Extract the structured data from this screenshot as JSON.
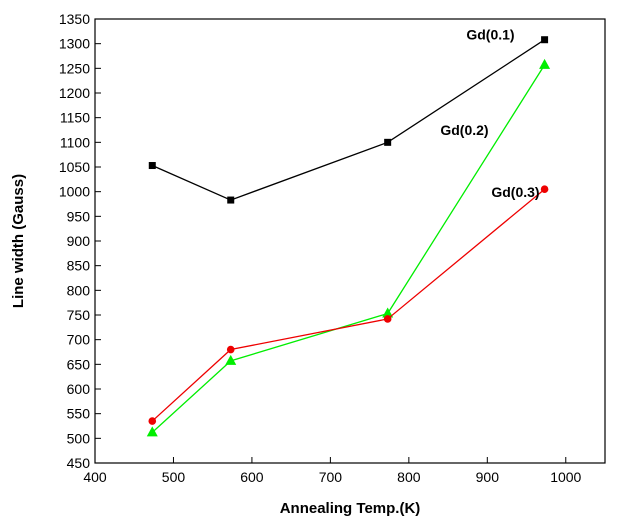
{
  "chart_data": {
    "type": "line",
    "xlabel": "Annealing Temp.(K)",
    "ylabel": "Line width (Gauss)",
    "xlim": [
      400,
      1050
    ],
    "ylim": [
      450,
      1350
    ],
    "x_ticks": [
      400,
      500,
      600,
      700,
      800,
      900,
      1000
    ],
    "y_ticks": [
      450,
      500,
      550,
      600,
      650,
      700,
      750,
      800,
      850,
      900,
      950,
      1000,
      1050,
      1100,
      1150,
      1200,
      1250,
      1300,
      1350
    ],
    "grid": false,
    "series": [
      {
        "name": "Gd(0.1)",
        "color": "#000000",
        "marker": "square",
        "x": [
          473,
          573,
          773,
          973
        ],
        "y": [
          1053,
          983,
          1100,
          1308
        ]
      },
      {
        "name": "Gd(0.2)",
        "color": "#00ee00",
        "marker": "triangle",
        "x": [
          473,
          573,
          773,
          973
        ],
        "y": [
          512,
          657,
          753,
          1257
        ]
      },
      {
        "name": "Gd(0.3)",
        "color": "#ee0000",
        "marker": "circle",
        "x": [
          473,
          573,
          773,
          973
        ],
        "y": [
          535,
          680,
          742,
          1005
        ]
      }
    ]
  }
}
